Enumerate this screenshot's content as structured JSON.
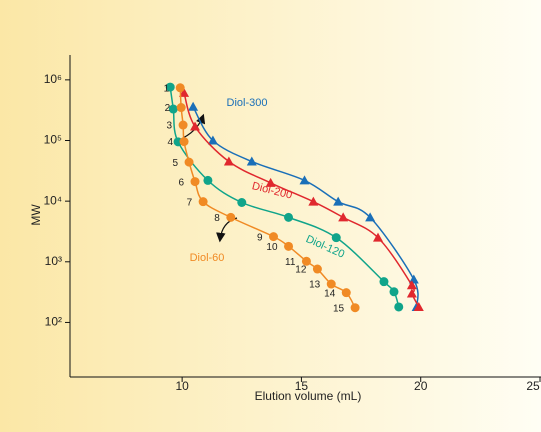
{
  "chart_data": {
    "type": "scatter",
    "x_label": "Elution volume (mL)",
    "y_label": "MW",
    "xlim": [
      5.3,
      25
    ],
    "xticks": [
      10,
      15,
      20,
      25
    ],
    "ylim": [
      12.6,
      2570000
    ],
    "log_y": true,
    "yticks": [
      {
        "value": 100,
        "label": "10²"
      },
      {
        "value": 1000,
        "label": "10³"
      },
      {
        "value": 10000,
        "label": "10⁴"
      },
      {
        "value": 100000,
        "label": "10⁵"
      },
      {
        "value": 1000000,
        "label": "10⁶"
      }
    ],
    "series": [
      {
        "name": "Diol-300",
        "color": "#1a6fb8",
        "marker": "triangle",
        "x": [
          10.46,
          11.29,
          12.92,
          15.13,
          16.54,
          17.88,
          19.71,
          19.83
        ],
        "values": [
          360000,
          100000,
          45000,
          22000,
          9800,
          5400,
          510,
          180
        ]
      },
      {
        "name": "Diol-200",
        "color": "#e0282e",
        "marker": "triangle",
        "x": [
          10.08,
          10.54,
          11.96,
          13.71,
          15.5,
          16.75,
          18.21,
          19.63,
          19.63,
          19.92
        ],
        "values": [
          610000,
          170000,
          45000,
          20000,
          9800,
          5400,
          2500,
          410,
          300,
          180
        ]
      },
      {
        "name": "Diol-120",
        "color": "#10a48a",
        "marker": "circle",
        "x": [
          9.5,
          9.63,
          9.83,
          11.08,
          12.5,
          14.46,
          16.46,
          18.46,
          18.88,
          19.08
        ],
        "values": [
          760000,
          330000,
          95000,
          22000,
          9500,
          5400,
          2500,
          470,
          320,
          180
        ]
      },
      {
        "name": "Diol-60",
        "color": "#f08a24",
        "marker": "circle",
        "x": [
          9.92,
          9.96,
          10.04,
          10.08,
          10.29,
          10.54,
          10.88,
          12.04,
          13.83,
          14.46,
          15.21,
          15.67,
          16.25,
          16.88,
          17.25
        ],
        "values": [
          740000,
          350000,
          180000,
          96000,
          44000,
          21000,
          9800,
          5400,
          2600,
          1800,
          1020,
          760,
          430,
          310,
          175
        ],
        "point_labels": [
          1,
          2,
          3,
          4,
          5,
          6,
          7,
          8,
          9,
          10,
          11,
          12,
          13,
          14,
          15
        ]
      }
    ]
  }
}
